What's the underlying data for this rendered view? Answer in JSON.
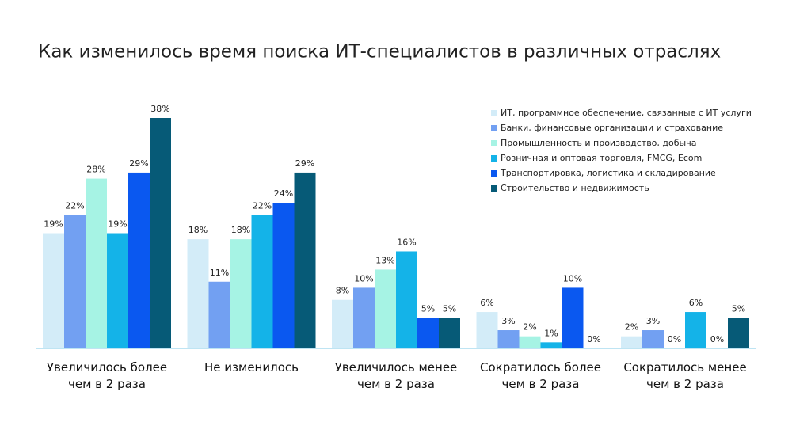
{
  "chart_data": {
    "type": "bar",
    "title": "Как изменилось время поиска ИТ-специалистов в различных отраслях",
    "categories": [
      "Увеличилось более чем в 2 раза",
      "Не изменилось",
      "Увеличилось менее чем в 2 раза",
      "Сократилось более чем в 2 раза",
      "Сократилось менее чем в 2 раза"
    ],
    "series": [
      {
        "name": "ИТ, программное обеспечение, связанные с ИТ услуги",
        "color": "#d3ecf8",
        "values": [
          19,
          18,
          8,
          6,
          2
        ],
        "value_labels": [
          "19%",
          "18%",
          "8%",
          "6%",
          "2%"
        ]
      },
      {
        "name": "Банки, финансовые организации и страхование",
        "color": "#72a0f2",
        "values": [
          22,
          11,
          10,
          3,
          3
        ],
        "value_labels": [
          "22%",
          "11%",
          "10%",
          "3%",
          "3%"
        ]
      },
      {
        "name": "Промышленность и производство, добыча",
        "color": "#a6f3e4",
        "values": [
          28,
          18,
          13,
          2,
          0
        ],
        "value_labels": [
          "28%",
          "18%",
          "13%",
          "2%",
          "0%"
        ]
      },
      {
        "name": "Розничная и оптовая торговля, FMCG, Ecom",
        "color": "#14b3e8",
        "values": [
          19,
          22,
          16,
          1,
          6
        ],
        "value_labels": [
          "19%",
          "22%",
          "16%",
          "1%",
          "6%"
        ]
      },
      {
        "name": "Транспортировка, логистика и складирование",
        "color": "#0a58f0",
        "values": [
          29,
          24,
          5,
          10,
          0
        ],
        "value_labels": [
          "29%",
          "24%",
          "5%",
          "10%",
          "0%"
        ]
      },
      {
        "name": "Строительство и недвижимость",
        "color": "#065a77",
        "values": [
          38,
          29,
          5,
          0,
          5
        ],
        "value_labels": [
          "38%",
          "29%",
          "5%",
          "0%",
          "5%"
        ]
      }
    ],
    "ylim": [
      0,
      38
    ],
    "legend": "top-right"
  }
}
